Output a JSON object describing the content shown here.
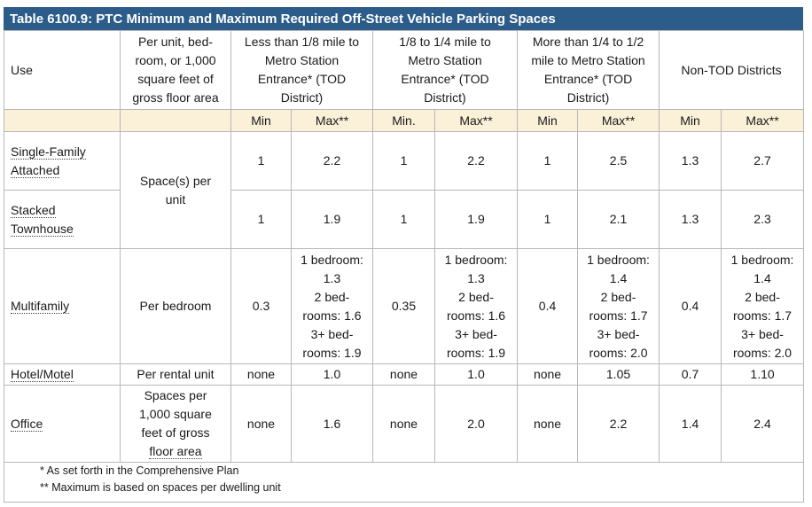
{
  "title": "Table 6100.9:  PTC Minimum and Maximum Required Off-Street Vehicle Parking Spaces",
  "headers": {
    "use": "Use",
    "basis_lines": [
      "Per unit, bed-",
      "room, or 1,000",
      "square feet of",
      "gross floor area"
    ],
    "zone1_lines": [
      "Less than 1/8 mile to",
      "Metro Station",
      "Entrance* (TOD",
      "District)"
    ],
    "zone2_lines": [
      "1/8 to 1/4 mile to",
      "Metro Station",
      "Entrance* (TOD",
      "District)"
    ],
    "zone3_lines": [
      "More than 1/4 to 1/2",
      "mile to Metro Station",
      "Entrance* (TOD",
      "District)"
    ],
    "zone4": "Non-TOD Districts"
  },
  "subheaders": [
    "Min",
    "Max**",
    "Min.",
    "Max**",
    "Min",
    "Max**",
    "Min",
    "Max**"
  ],
  "rows": {
    "sfa": {
      "use_lines": [
        "Single-Family",
        "Attached"
      ],
      "values": [
        "1",
        "2.2",
        "1",
        "2.2",
        "1",
        "2.5",
        "1.3",
        "2.7"
      ]
    },
    "shared_basis_lines": [
      "Space(s) per",
      "unit"
    ],
    "st": {
      "use_lines": [
        "Stacked",
        "Townhouse"
      ],
      "values": [
        "1",
        "1.9",
        "1",
        "1.9",
        "1",
        "2.1",
        "1.3",
        "2.3"
      ]
    },
    "mf": {
      "use": "Multifamily",
      "basis": "Per bedroom",
      "min1": "0.3",
      "max1": [
        "1 bedroom:",
        "1.3",
        "2 bed-",
        "rooms: 1.6",
        "3+ bed-",
        "rooms: 1.9"
      ],
      "min2": "0.35",
      "max2": [
        "1 bedroom:",
        "1.3",
        "2 bed-",
        "rooms: 1.6",
        "3+ bed-",
        "rooms: 1.9"
      ],
      "min3": "0.4",
      "max3": [
        "1 bedroom:",
        "1.4",
        "2 bed-",
        "rooms: 1.7",
        "3+ bed-",
        "rooms: 2.0"
      ],
      "min4": "0.4",
      "max4": [
        "1 bedroom:",
        "1.4",
        "2 bed-",
        "rooms: 1.7",
        "3+ bed-",
        "rooms: 2.0"
      ]
    },
    "hm": {
      "use": "Hotel/Motel",
      "basis": "Per rental unit",
      "values": [
        "none",
        "1.0",
        "none",
        "1.0",
        "none",
        "1.05",
        "0.7",
        "1.10"
      ]
    },
    "of": {
      "use": "Office",
      "basis_lines": [
        "Spaces per",
        "1,000 square",
        "feet of gross",
        "floor area"
      ],
      "values": [
        "none",
        "1.6",
        "none",
        "2.0",
        "none",
        "2.2",
        "1.4",
        "2.4"
      ]
    }
  },
  "notes": [
    "* As set forth in the Comprehensive Plan",
    "** Maximum is based on spaces per dwelling unit"
  ]
}
